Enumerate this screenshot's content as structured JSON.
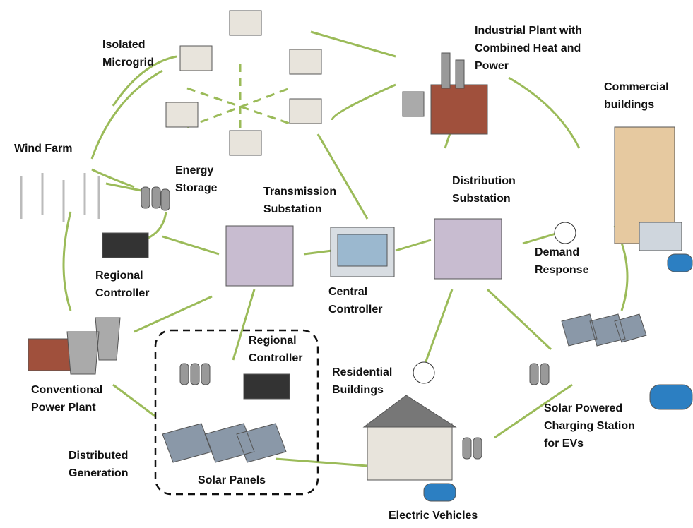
{
  "nodes": [
    {
      "lines": [
        "Isolated",
        "Microgrid"
      ]
    },
    {
      "lines": [
        "Industrial Plant with",
        "Combined Heat and",
        "Power"
      ]
    },
    {
      "lines": [
        "Commercial",
        "buildings"
      ]
    },
    {
      "lines": [
        "Wind Farm"
      ]
    },
    {
      "lines": [
        "Energy",
        "Storage"
      ]
    },
    {
      "lines": [
        "Transmission",
        "Substation"
      ]
    },
    {
      "lines": [
        "Distribution",
        "Substation"
      ]
    },
    {
      "lines": [
        "Demand",
        "Response"
      ]
    },
    {
      "lines": [
        "Regional",
        "Controller"
      ]
    },
    {
      "lines": [
        "Central",
        "Controller"
      ]
    },
    {
      "lines": [
        "Conventional",
        "Power Plant"
      ]
    },
    {
      "lines": [
        "Regional",
        "Controller"
      ]
    },
    {
      "lines": [
        "Residential",
        "Buildings"
      ]
    },
    {
      "lines": [
        "Solar Powered",
        "Charging Station",
        "for EVs"
      ]
    },
    {
      "lines": [
        "Distributed",
        "Generation"
      ]
    },
    {
      "lines": [
        "Solar Panels"
      ]
    },
    {
      "lines": [
        "Electric Vehicles"
      ]
    }
  ]
}
